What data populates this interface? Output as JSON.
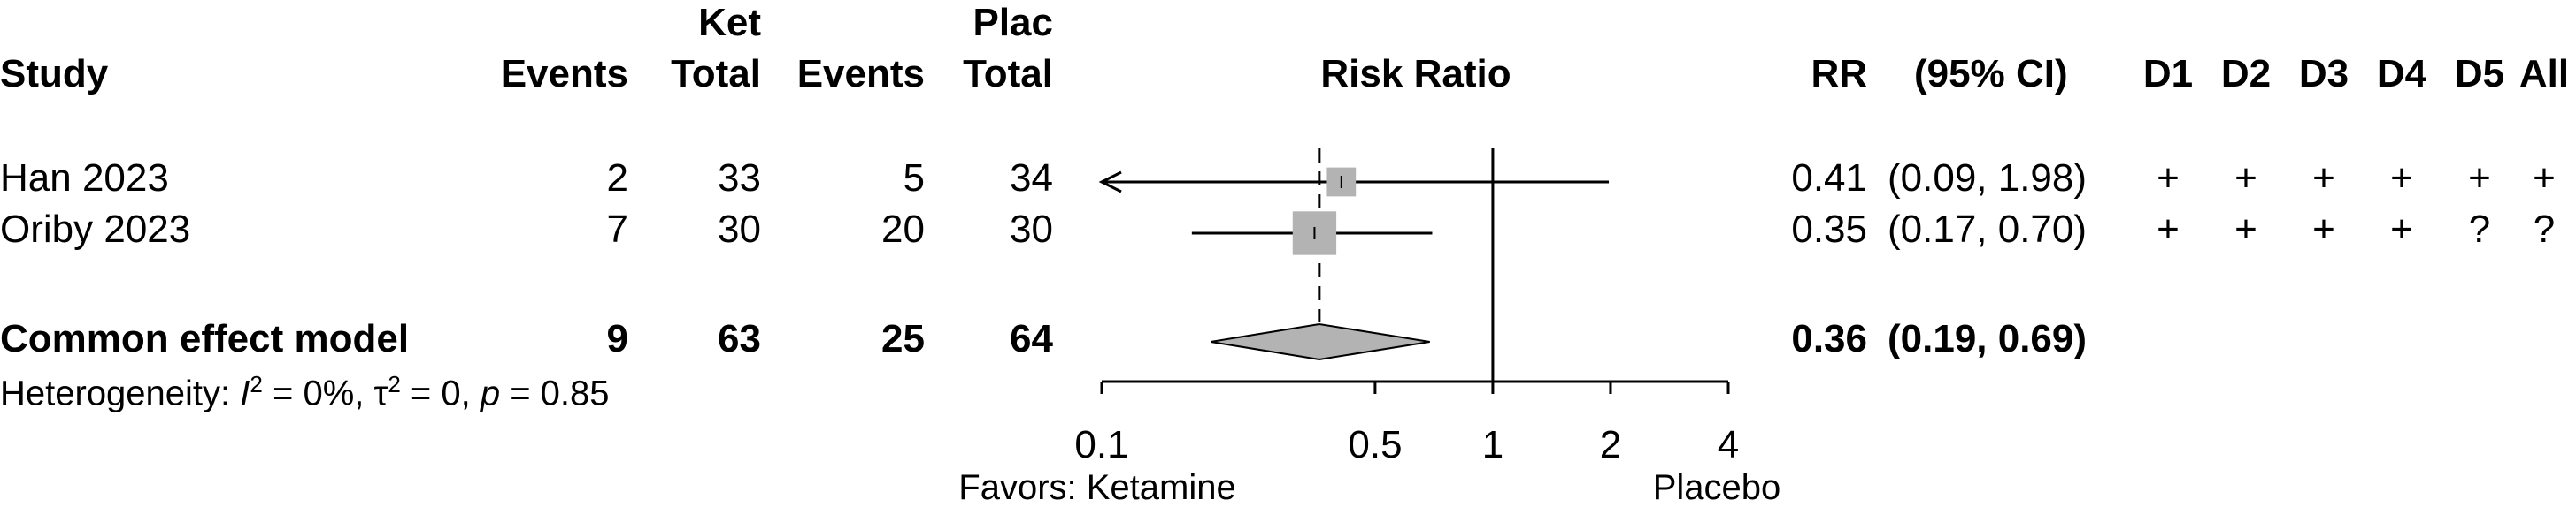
{
  "header": {
    "exp_group": "Ket",
    "ctrl_group": "Plac",
    "study": "Study",
    "exp_events": "Events",
    "exp_total": "Total",
    "ctrl_events": "Events",
    "ctrl_total": "Total",
    "plot_title": "Risk Ratio",
    "rr": "RR",
    "ci": "(95% CI)",
    "domains": [
      "D1",
      "D2",
      "D3",
      "D4",
      "D5",
      "All"
    ]
  },
  "chart_data": {
    "type": "forest",
    "title": "Risk Ratio",
    "scale": "log",
    "xlim": [
      0.1,
      4
    ],
    "ticks": [
      "0.1",
      "0.5",
      "1",
      "2",
      "4"
    ],
    "tick_values": [
      0.1,
      0.5,
      1,
      2,
      4
    ],
    "null_line": 1,
    "pooled_reference_line": 0.36,
    "label_left": "Favors: Ketamine",
    "label_right": "Placebo",
    "studies": [
      {
        "name": "Han 2023",
        "exp_events": "2",
        "exp_total": "33",
        "ctrl_events": "5",
        "ctrl_total": "34",
        "rr": 0.41,
        "lower": 0.09,
        "upper": 1.98,
        "rr_text": "0.41",
        "ci_text": "(0.09, 1.98)",
        "weight": 0.22,
        "lower_clipped": true,
        "rob": [
          "+",
          "+",
          "+",
          "+",
          "+",
          "+"
        ]
      },
      {
        "name": "Oriby 2023",
        "exp_events": "7",
        "exp_total": "30",
        "ctrl_events": "20",
        "ctrl_total": "30",
        "rr": 0.35,
        "lower": 0.17,
        "upper": 0.7,
        "rr_text": "0.35",
        "ci_text": "(0.17, 0.70)",
        "weight": 0.78,
        "lower_clipped": false,
        "rob": [
          "+",
          "+",
          "+",
          "+",
          "?",
          "?"
        ]
      }
    ],
    "pooled": {
      "name": "Common effect model",
      "exp_events": "9",
      "exp_total": "63",
      "ctrl_events": "25",
      "ctrl_total": "64",
      "rr": 0.36,
      "lower": 0.19,
      "upper": 0.69,
      "rr_text": "0.36",
      "ci_text": "(0.19, 0.69)"
    },
    "heterogeneity": {
      "prefix": "Heterogeneity: ",
      "i_sym": "I",
      "i_sup": "2",
      "i_val": " = 0%, ",
      "tau_sym": "τ",
      "tau_sup": "2",
      "tau_val": " = 0, ",
      "p_sym": "p",
      "p_val": " = 0.85"
    },
    "colors": {
      "square": "#b3b3b3",
      "diamond": "#b3b3b3",
      "line": "#000000"
    }
  }
}
